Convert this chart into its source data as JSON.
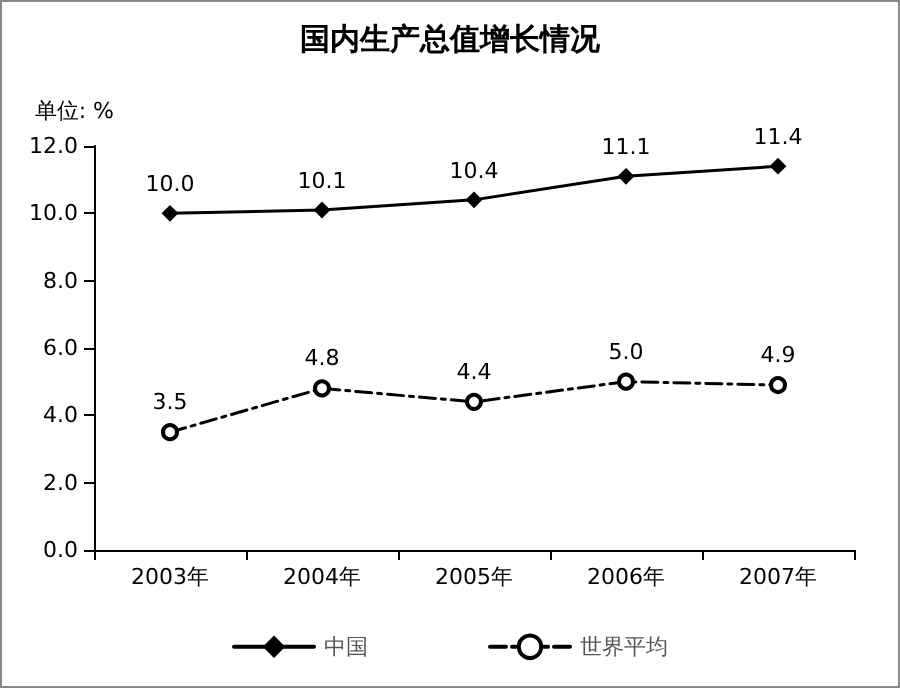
{
  "chart_data": {
    "type": "line",
    "title": "国内生产总值增长情况",
    "ylabel": "单位: %",
    "categories": [
      "2003年",
      "2004年",
      "2005年",
      "2006年",
      "2007年"
    ],
    "series": [
      {
        "name": "中国",
        "color": "#000000",
        "marker": "diamond",
        "line_style": "solid",
        "values": [
          10.0,
          10.1,
          10.4,
          11.1,
          11.4
        ],
        "value_labels": [
          "10.0",
          "10.1",
          "10.4",
          "11.1",
          "11.4"
        ]
      },
      {
        "name": "世界平均",
        "color": "#000000",
        "marker": "circle",
        "line_style": "dashed",
        "values": [
          3.5,
          4.8,
          4.4,
          5.0,
          4.9
        ],
        "value_labels": [
          "3.5",
          "4.8",
          "4.4",
          "5.0",
          "4.9"
        ]
      }
    ],
    "ylim": [
      0,
      12
    ],
    "yticks": [
      {
        "value": 0,
        "label": "0.0"
      },
      {
        "value": 2,
        "label": "2.0"
      },
      {
        "value": 4,
        "label": "4.0"
      },
      {
        "value": 6,
        "label": "6.0"
      },
      {
        "value": 8,
        "label": "8.0"
      },
      {
        "value": 10,
        "label": "10.0"
      },
      {
        "value": 12,
        "label": "12.0"
      }
    ],
    "grid": false,
    "legend": "bottom"
  }
}
